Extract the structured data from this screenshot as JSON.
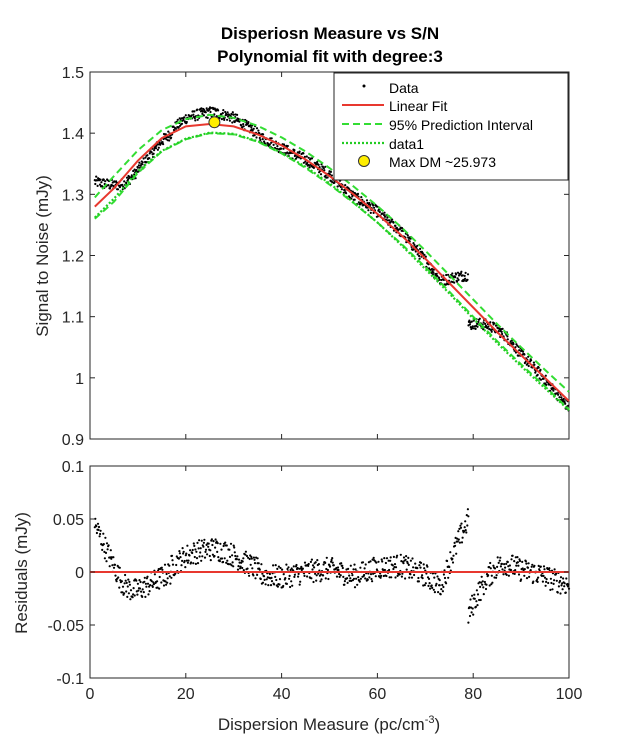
{
  "figure": {
    "title_line1": "Disperiosn Measure vs S/N",
    "title_line2": "Polynomial fit with degree:3",
    "xlabel_main": "Dispersion Measure (pc/cm",
    "xlabel_sup": "-3",
    "xlabel_close": ")"
  },
  "chart_data": [
    {
      "type": "scatter",
      "ylabel": "Signal to Noise (mJy)",
      "xlim": [
        0,
        100
      ],
      "ylim": [
        0.9,
        1.5
      ],
      "xticks": [
        0,
        20,
        40,
        60,
        80,
        100
      ],
      "yticks": [
        0.9,
        1,
        1.1,
        1.2,
        1.3,
        1.4,
        1.5
      ],
      "ytick_labels": [
        "0.9",
        "1",
        "1.1",
        "1.2",
        "1.3",
        "1.4",
        "1.5"
      ],
      "legend_position": "top-right",
      "legend": [
        "Data",
        "Linear Fit",
        "95% Prediction Interval",
        "data1",
        "Max DM ~25.973"
      ],
      "fit": {
        "x": [
          1,
          5,
          10,
          15,
          20,
          25,
          30,
          35,
          40,
          45,
          50,
          55,
          60,
          65,
          70,
          75,
          80,
          85,
          90,
          95,
          100
        ],
        "y": [
          1.28,
          1.31,
          1.355,
          1.392,
          1.411,
          1.415,
          1.411,
          1.398,
          1.38,
          1.357,
          1.33,
          1.3,
          1.268,
          1.233,
          1.195,
          1.155,
          1.115,
          1.075,
          1.037,
          1.0,
          0.962
        ]
      },
      "prediction_upper": [
        1.295,
        1.33,
        1.372,
        1.405,
        1.423,
        1.43,
        1.425,
        1.412,
        1.393,
        1.37,
        1.343,
        1.313,
        1.281,
        1.246,
        1.208,
        1.168,
        1.128,
        1.088,
        1.05,
        1.013,
        0.977
      ],
      "prediction_lower": [
        1.26,
        1.288,
        1.335,
        1.37,
        1.39,
        1.4,
        1.398,
        1.386,
        1.367,
        1.343,
        1.316,
        1.286,
        1.254,
        1.219,
        1.181,
        1.141,
        1.1,
        1.06,
        1.022,
        0.986,
        0.948
      ],
      "data1": {
        "x": [
          1,
          5,
          10,
          15,
          20,
          25,
          30,
          35,
          40,
          45,
          50,
          55,
          60,
          65,
          70,
          75,
          80,
          85,
          90,
          95,
          100
        ],
        "y": [
          1.262,
          1.293,
          1.338,
          1.371,
          1.391,
          1.401,
          1.399,
          1.387,
          1.368,
          1.345,
          1.318,
          1.287,
          1.254,
          1.217,
          1.178,
          1.138,
          1.097,
          1.057,
          1.019,
          0.983,
          0.947
        ]
      },
      "max_point": {
        "x": 25.973,
        "y": 1.418
      },
      "colors": {
        "data": "#000000",
        "fit": "#e8382f",
        "interval": "#33dd33",
        "data1": "#22cc22",
        "max_fill": "#ffee00",
        "max_edge": "#333333"
      }
    },
    {
      "type": "scatter",
      "ylabel": "Residuals (mJy)",
      "xlim": [
        0,
        100
      ],
      "ylim": [
        -0.1,
        0.1
      ],
      "xticks": [
        0,
        20,
        40,
        60,
        80,
        100
      ],
      "yticks": [
        -0.1,
        -0.05,
        0,
        0.05,
        0.1
      ],
      "ytick_labels": [
        "-0.1",
        "-0.05",
        "0",
        "0.05",
        "0.1"
      ],
      "zero_line": 0,
      "residual_segments": [
        {
          "x": [
            1,
            3,
            5,
            7,
            9,
            11,
            13,
            15,
            17
          ],
          "y": [
            0.045,
            0.025,
            0.005,
            -0.012,
            -0.018,
            -0.015,
            -0.01,
            -0.005,
            0.0
          ]
        },
        {
          "x": [
            17,
            20,
            23,
            26,
            29,
            32,
            35
          ],
          "y": [
            0.005,
            0.015,
            0.02,
            0.022,
            0.018,
            0.01,
            0.002
          ]
        },
        {
          "x": [
            35,
            40,
            45,
            50,
            55,
            60,
            65,
            70,
            73
          ],
          "y": [
            -0.002,
            -0.005,
            0.0,
            0.003,
            -0.004,
            0.004,
            0.006,
            -0.003,
            -0.012
          ]
        },
        {
          "x": [
            73,
            75,
            77,
            79
          ],
          "y": [
            -0.015,
            0.008,
            0.03,
            0.05
          ]
        },
        {
          "x": [
            79,
            81,
            83,
            85,
            87,
            90,
            94,
            97,
            100
          ],
          "y": [
            -0.04,
            -0.02,
            -0.005,
            0.005,
            0.008,
            0.002,
            -0.002,
            -0.008,
            -0.012
          ]
        }
      ],
      "colors": {
        "data": "#000000",
        "zero": "#e8382f"
      }
    }
  ]
}
